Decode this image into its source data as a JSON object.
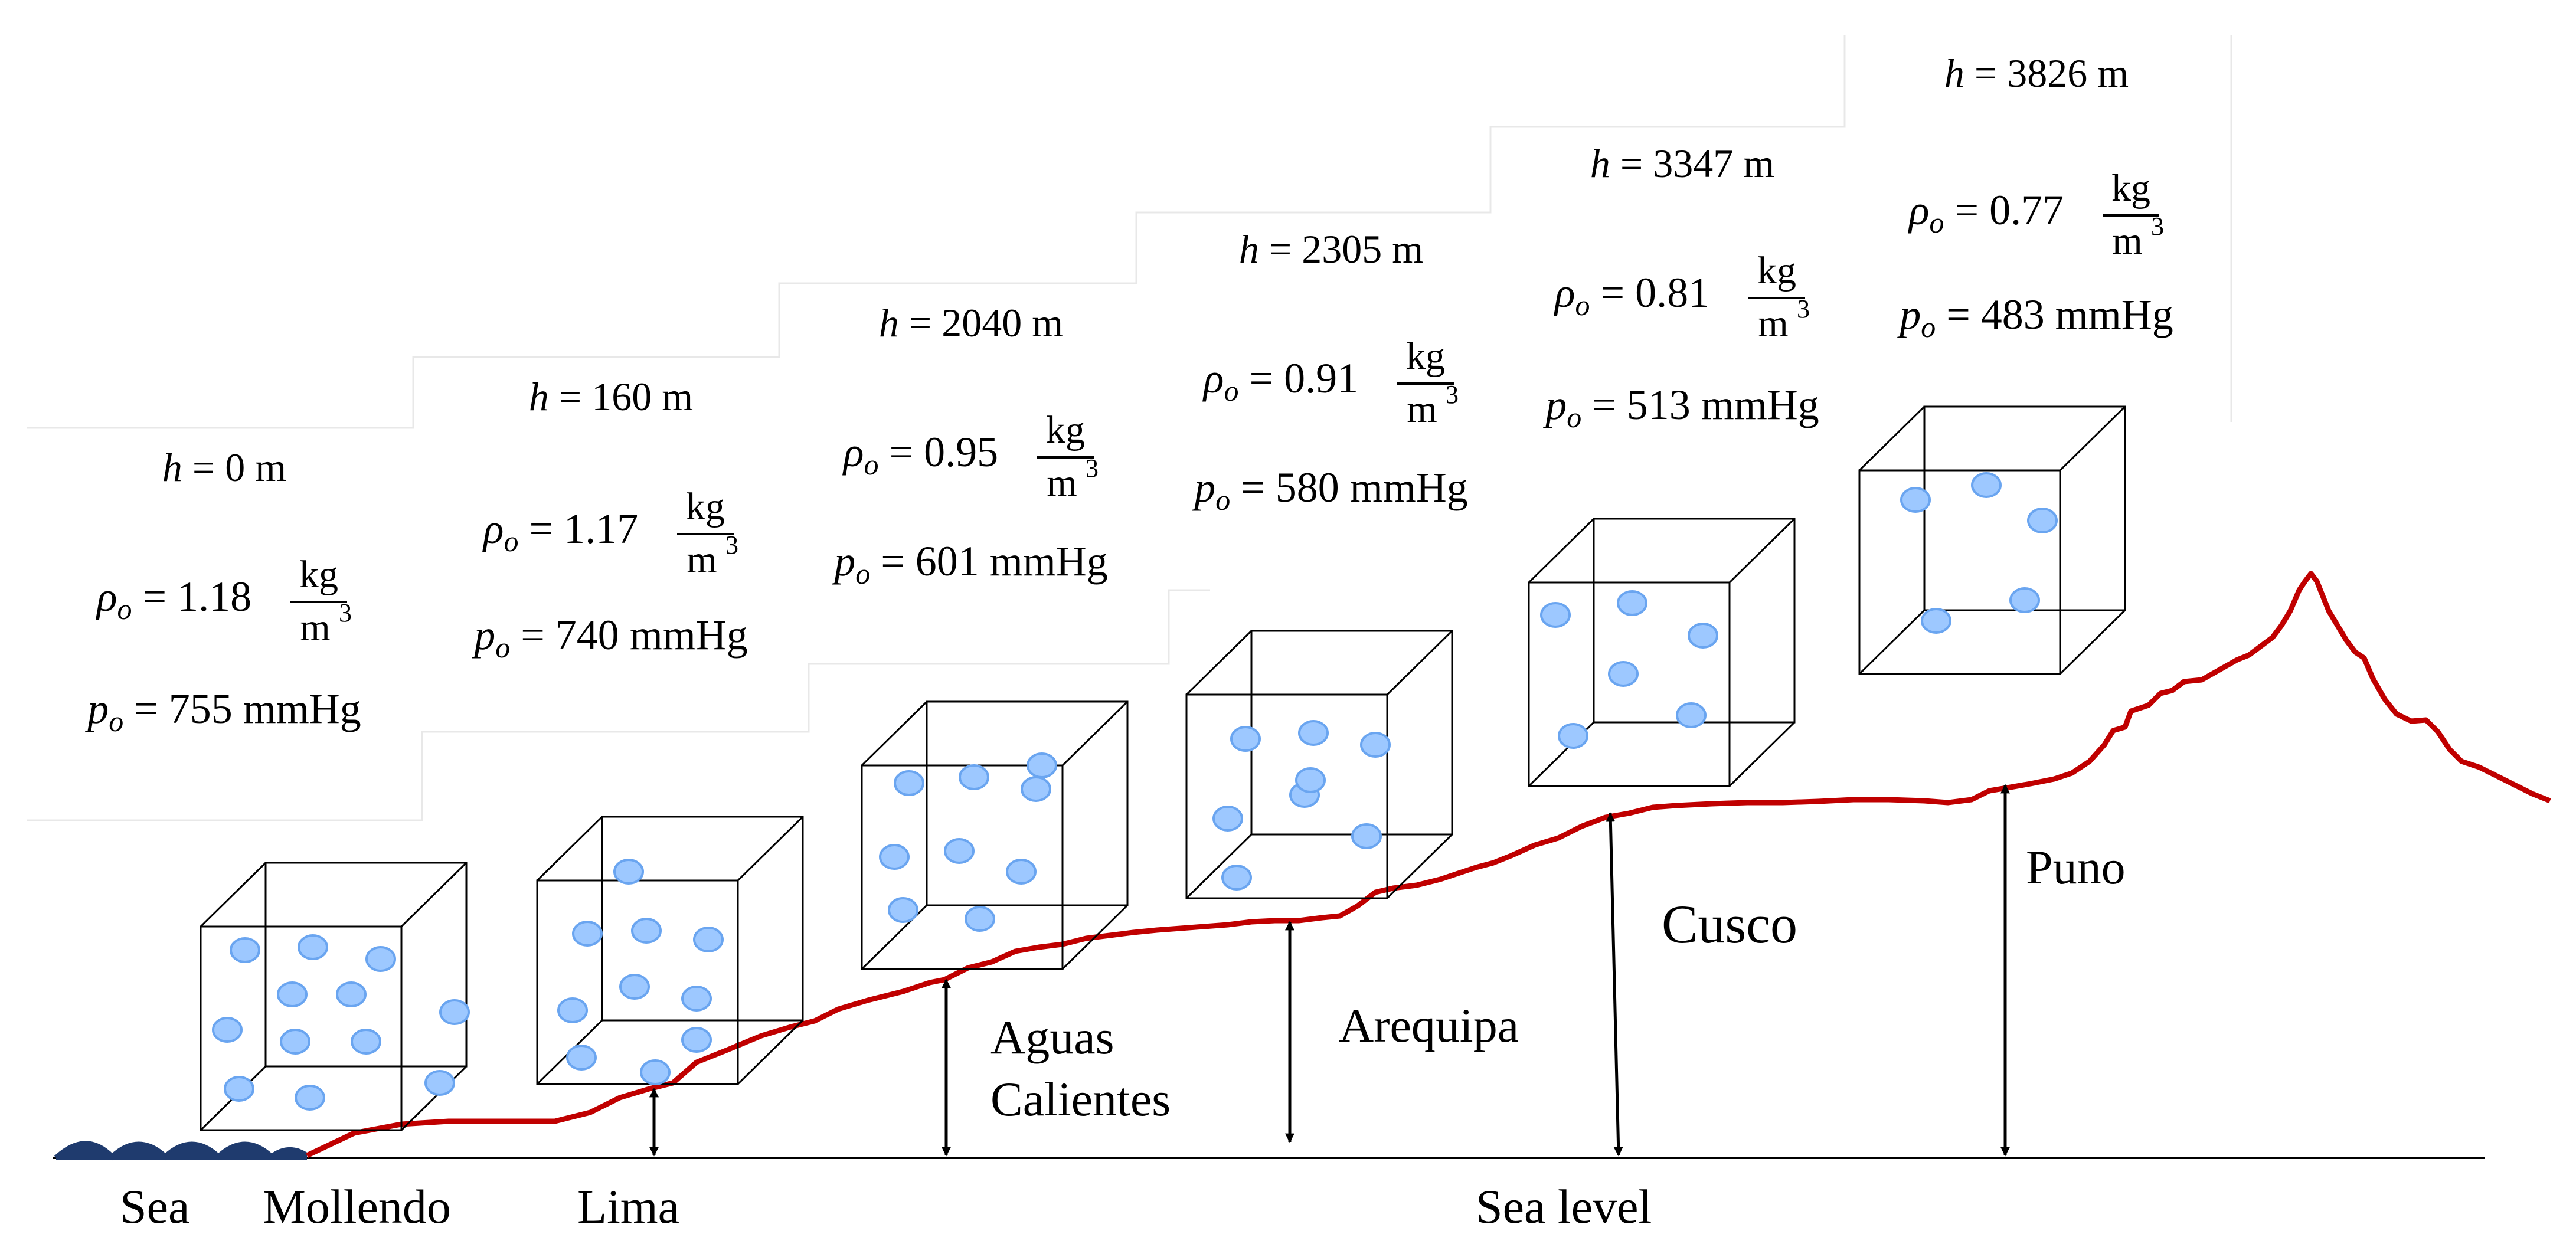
{
  "colors": {
    "terrain": "#c00000",
    "sea": "#1f3b6e",
    "particle_fill": "#9dc8ff",
    "particle_edge": "#6aa5f0",
    "line": "#000000"
  },
  "symbols": {
    "h": "h",
    "rho": "ρ",
    "p": "p",
    "sub": "o",
    "eq": "=",
    "unit_num": "kg",
    "unit_den": "m",
    "unit_den_exp": "3"
  },
  "stations": [
    {
      "h": "= 0 m",
      "rho": "= 1.18",
      "p": "= 755 mmHg",
      "particles": 12
    },
    {
      "h": "= 160 m",
      "rho": "= 1.17",
      "p": "= 740 mmHg",
      "particles": 10
    },
    {
      "h": "= 2040 m",
      "rho": "= 0.95",
      "p": "= 601 mmHg",
      "particles": 9
    },
    {
      "h": "= 2305 m",
      "rho": "= 0.91",
      "p": "= 580 mmHg",
      "particles": 8
    },
    {
      "h": "= 3347 m",
      "rho": "= 0.81",
      "p": "= 513 mmHg",
      "particles": 6
    },
    {
      "h": "= 3826 m",
      "rho": "= 0.77",
      "p": "= 483 mmHg",
      "particles": 5
    }
  ],
  "places": {
    "sea": "Sea",
    "mollendo": "Mollendo",
    "lima": "Lima",
    "aguas_1": "Aguas",
    "aguas_2": "Calientes",
    "arequipa": "Arequipa",
    "cusco": "Cusco",
    "puno": "Puno",
    "sea_level": "Sea level"
  }
}
